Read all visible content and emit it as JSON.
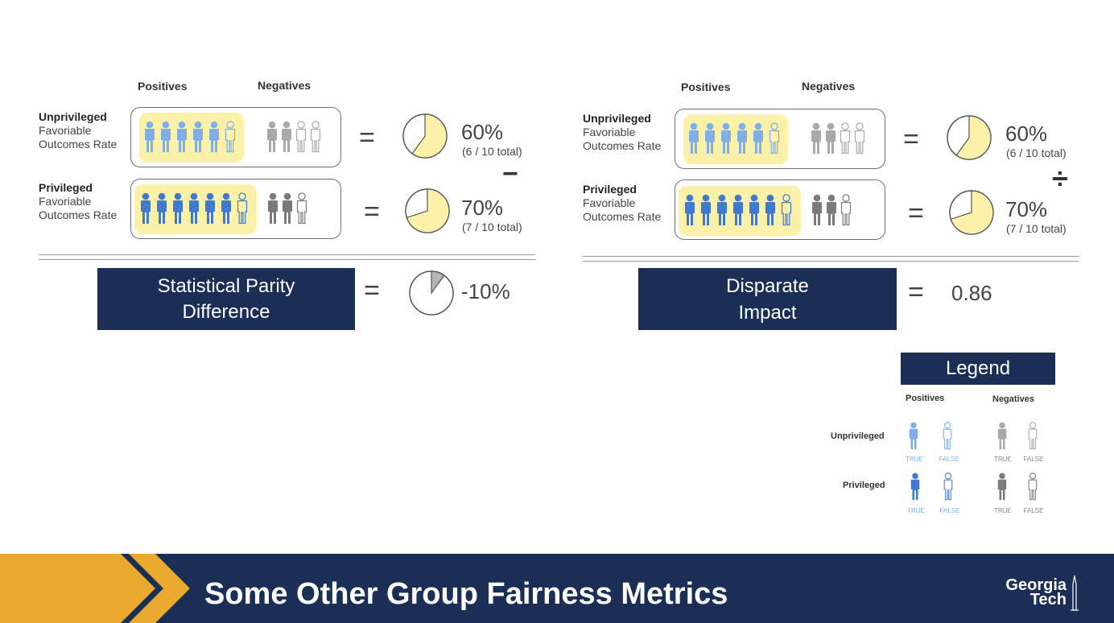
{
  "left_panel": {
    "col_positives": "Positives",
    "col_negatives": "Negatives",
    "row1": {
      "label_bold": "Unprivileged",
      "label_rest": [
        "Favoriable",
        "Outcomes Rate"
      ],
      "percent": "60%",
      "detail": "(6 / 10 total)"
    },
    "row2": {
      "label_bold": "Privileged",
      "label_rest": [
        "Favoriable",
        "Outcomes Rate"
      ],
      "percent": "70%",
      "detail": "(7 / 10 total)"
    },
    "operator": "−",
    "metric_name": "Statistical Parity Difference",
    "equals": "=",
    "result": "-10%"
  },
  "right_panel": {
    "col_positives": "Positives",
    "col_negatives": "Negatives",
    "row1": {
      "label_bold": "Unprivileged",
      "label_rest": [
        "Favoriable",
        "Outcomes Rate"
      ],
      "percent": "60%",
      "detail": "(6 / 10 total)"
    },
    "row2": {
      "label_bold": "Privileged",
      "label_rest": [
        "Favoriable",
        "Outcomes Rate"
      ],
      "percent": "70%",
      "detail": "(7 / 10 total)"
    },
    "operator": "÷",
    "metric_name_line1": "Disparate",
    "metric_name_line2": "Impact",
    "equals": "=",
    "result": "0.86"
  },
  "legend": {
    "title": "Legend",
    "col_positives": "Positives",
    "col_negatives": "Negatives",
    "row_unprivileged": "Unprivileged",
    "row_privileged": "Privileged",
    "true_label": "TRUE",
    "false_label": "FALSE"
  },
  "footer": {
    "title": "Some Other Group Fairness Metrics",
    "logo_line1": "Georgia",
    "logo_line2": "Tech"
  },
  "colors": {
    "navy": "#1b2e55",
    "gold": "#eaaa2f",
    "highlight": "#fbf1a9",
    "light_blue": "#7faee8",
    "blue": "#3f7ad2",
    "gray": "#a9a9a9",
    "dark_gray": "#7a7a7a"
  },
  "pies": {
    "unprivileged_rate": 0.6,
    "privileged_rate": 0.7,
    "difference_rate": 0.1
  }
}
